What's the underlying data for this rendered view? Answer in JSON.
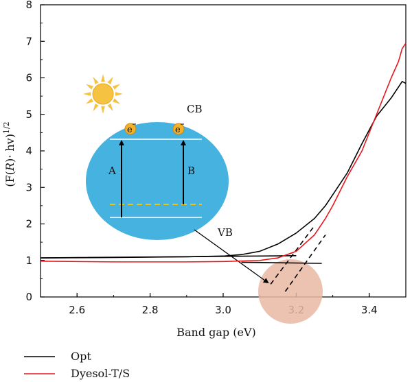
{
  "chart_data": {
    "type": "line",
    "title": "",
    "xlabel": "Band gap (eV)",
    "ylabel": "(F(R)· hν)^1/2",
    "ylabel_parts": {
      "open": "(F(",
      "italic": "R",
      "mid": ")· hv)",
      "sup": "1/2"
    },
    "xlim": [
      2.5,
      3.5
    ],
    "ylim": [
      0,
      8
    ],
    "x_ticks": [
      "2.6",
      "2.8",
      "3.0",
      "3.2",
      "3.4"
    ],
    "x_tick_values": [
      2.6,
      2.8,
      3.0,
      3.2,
      3.4
    ],
    "y_ticks": [
      "0",
      "1",
      "2",
      "3",
      "4",
      "5",
      "6",
      "7",
      "8"
    ],
    "y_tick_values": [
      0,
      1,
      2,
      3,
      4,
      5,
      6,
      7,
      8
    ],
    "grid": false,
    "legend_position": "bottom-left",
    "series": [
      {
        "name": "Opt",
        "color": "#000000",
        "x": [
          2.5,
          2.7,
          2.9,
          3.0,
          3.05,
          3.1,
          3.15,
          3.2,
          3.25,
          3.28,
          3.3,
          3.34,
          3.38,
          3.42,
          3.46,
          3.48,
          3.49,
          3.5
        ],
        "y": [
          1.07,
          1.08,
          1.1,
          1.12,
          1.16,
          1.25,
          1.45,
          1.75,
          2.15,
          2.5,
          2.8,
          3.4,
          4.2,
          4.95,
          5.45,
          5.75,
          5.9,
          5.85
        ]
      },
      {
        "name": "Dyesol-T/S",
        "color": "#e8161b",
        "x": [
          2.5,
          2.7,
          2.9,
          3.0,
          3.1,
          3.15,
          3.2,
          3.25,
          3.28,
          3.3,
          3.34,
          3.38,
          3.4,
          3.42,
          3.44,
          3.46,
          3.48,
          3.49,
          3.5
        ],
        "y": [
          0.98,
          0.96,
          0.96,
          0.97,
          1.0,
          1.07,
          1.25,
          1.7,
          2.15,
          2.5,
          3.3,
          4.0,
          4.5,
          5.0,
          5.5,
          6.0,
          6.45,
          6.8,
          6.95
        ]
      }
    ],
    "extra_lines": [
      {
        "name": "baseline-opt",
        "color": "#000000",
        "dash": "solid",
        "x": [
          2.5,
          3.1,
          3.2
        ],
        "y": [
          1.07,
          1.12,
          1.13
        ]
      },
      {
        "name": "baseline-dyesol",
        "color": "#000000",
        "dash": "solid",
        "x": [
          3.05,
          3.27
        ],
        "y": [
          0.95,
          0.92
        ]
      },
      {
        "name": "tangent-1",
        "color": "#000000",
        "dash": "dashed",
        "x": [
          3.13,
          3.25
        ],
        "y": [
          0.35,
          1.95
        ]
      },
      {
        "name": "tangent-2",
        "color": "#000000",
        "dash": "dashed",
        "x": [
          3.17,
          3.28
        ],
        "y": [
          0.15,
          1.7
        ]
      }
    ],
    "inset": {
      "labels": {
        "cb": "CB",
        "vb": "VB",
        "a": "A",
        "b": "B",
        "electron": "e"
      },
      "colors": {
        "circle": "#45b2e0",
        "sun": "#f5c242",
        "electron": "#f2b02b",
        "dashed": "#f4c20d",
        "zoom": "#e9b8a2"
      }
    }
  }
}
